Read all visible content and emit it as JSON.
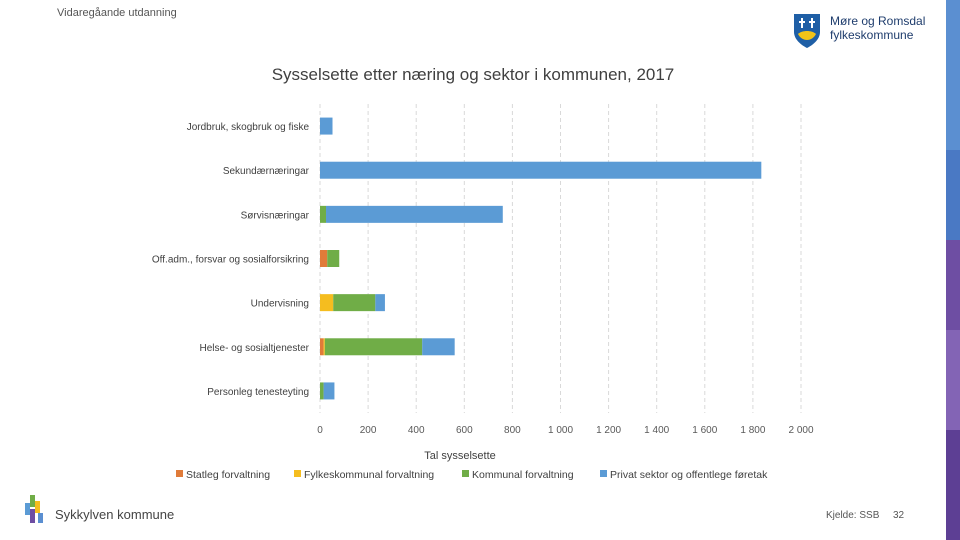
{
  "header": {
    "top_label": "Vidaregåande utdanning"
  },
  "logo": {
    "line1": "Møre og Romsdal",
    "line2": "fylkeskommune"
  },
  "footer": {
    "municipality": "Sykkylven kommune",
    "source": "Kjelde: SSB",
    "page_number": "32"
  },
  "colors": {
    "statleg": "#e07b39",
    "fylkeskommunal": "#f5bd1f",
    "kommunal": "#70ad47",
    "privat": "#5b9bd5",
    "stripe_blue": "#5b8fd1",
    "stripe_purple": "#6e4ea3"
  },
  "chart_data": {
    "type": "bar",
    "orientation": "horizontal",
    "stacked": true,
    "title": "Sysselsette etter næring og sektor i kommunen, 2017",
    "xlabel": "Tal sysselsette",
    "ylabel": "",
    "xlim": [
      0,
      2000
    ],
    "x_ticks": [
      0,
      200,
      400,
      600,
      800,
      1000,
      1200,
      1400,
      1600,
      1800,
      2000
    ],
    "x_tick_labels": [
      "0",
      "200",
      "400",
      "600",
      "800",
      "1 000",
      "1 200",
      "1 400",
      "1 600",
      "1 800",
      "2 000"
    ],
    "grid": true,
    "legend_position": "bottom",
    "categories": [
      "Jordbruk, skogbruk og fiske",
      "Sekundærnæringar",
      "Sørvisnæringar",
      "Off.adm., forsvar og sosialforsikring",
      "Undervisning",
      "Helse- og sosialtjenester",
      "Personleg tenesteyting"
    ],
    "series": [
      {
        "name": "Statleg forvaltning",
        "color": "#e07b39",
        "values": [
          0,
          0,
          0,
          30,
          0,
          15,
          0
        ]
      },
      {
        "name": "Fylkeskommunal forvaltning",
        "color": "#f5bd1f",
        "values": [
          0,
          0,
          0,
          0,
          55,
          5,
          0
        ]
      },
      {
        "name": "Kommunal forvaltning",
        "color": "#70ad47",
        "values": [
          0,
          0,
          25,
          50,
          175,
          405,
          15
        ]
      },
      {
        "name": "Privat sektor og offentlege føretak",
        "color": "#5b9bd5",
        "values": [
          52,
          1835,
          735,
          0,
          40,
          135,
          45
        ]
      }
    ]
  }
}
